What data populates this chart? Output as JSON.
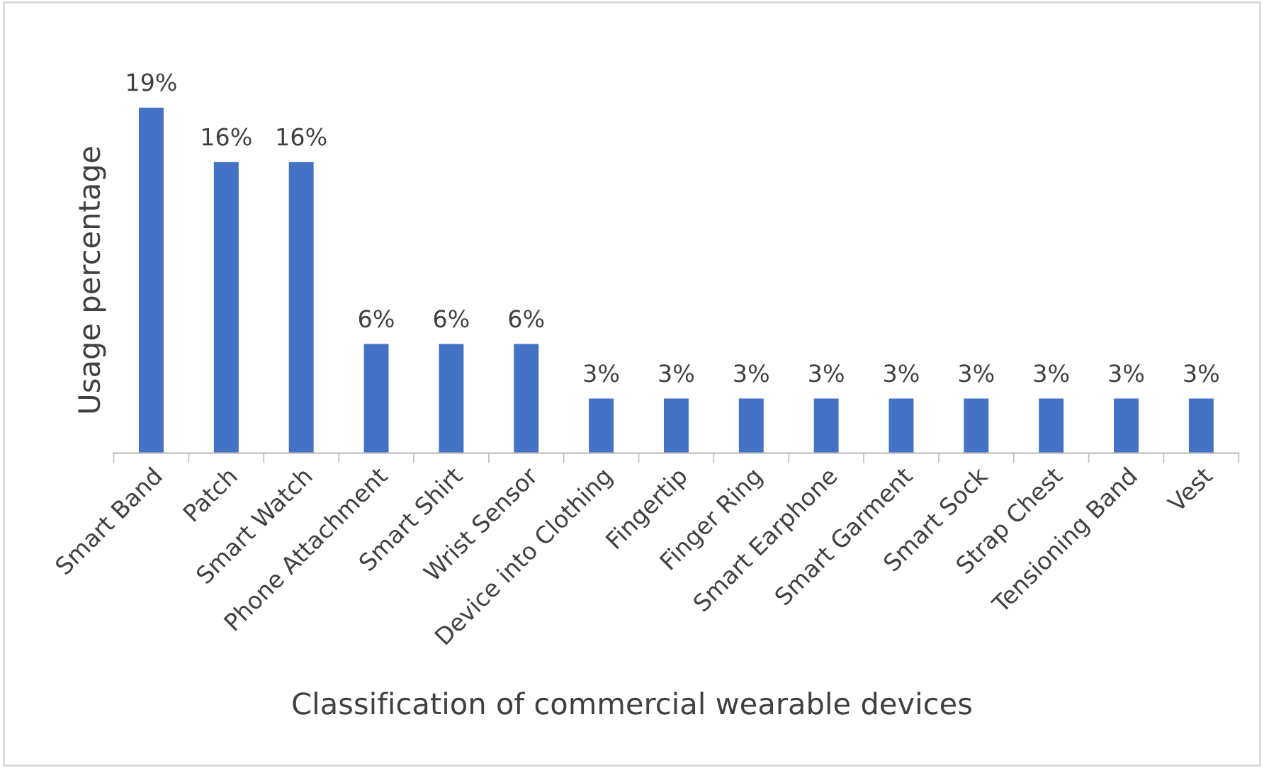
{
  "chart_data": {
    "type": "bar",
    "ylabel": "Usage percentage",
    "xlabel": "Classification of commercial wearable devices",
    "categories": [
      "Smart Band",
      "Patch",
      "Smart Watch",
      "Phone Attachment",
      "Smart Shirt",
      "Wrist Sensor",
      "Device into Clothing",
      "Fingertip",
      "Finger Ring",
      "Smart Earphone",
      "Smart Garment",
      "Smart Sock",
      "Strap Chest",
      "Tensioning Band",
      "Vest"
    ],
    "values": [
      19,
      16,
      16,
      6,
      6,
      6,
      3,
      3,
      3,
      3,
      3,
      3,
      3,
      3,
      3
    ],
    "value_labels": [
      "19%",
      "16%",
      "16%",
      "6%",
      "6%",
      "6%",
      "3%",
      "3%",
      "3%",
      "3%",
      "3%",
      "3%",
      "3%",
      "3%",
      "3%"
    ],
    "color": "#4472c4"
  }
}
